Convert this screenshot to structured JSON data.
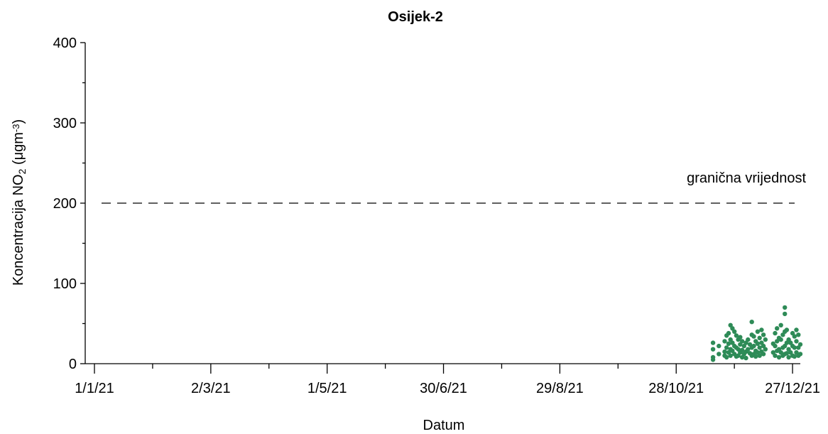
{
  "chart_data": {
    "type": "scatter",
    "title": "Osijek-2",
    "xlabel": "Datum",
    "ylabel": "Koncentracija NO₂ (μgm⁻³)",
    "ylim": [
      0,
      400
    ],
    "yticks": [
      0,
      100,
      200,
      300,
      400
    ],
    "xlim": [
      "2021-01-01",
      "2021-12-31"
    ],
    "xticks": [
      {
        "date": "2021-01-01",
        "label": "1/1/21"
      },
      {
        "date": "2021-03-02",
        "label": "2/3/21"
      },
      {
        "date": "2021-05-01",
        "label": "1/5/21"
      },
      {
        "date": "2021-06-30",
        "label": "30/6/21"
      },
      {
        "date": "2021-08-29",
        "label": "29/8/21"
      },
      {
        "date": "2021-10-28",
        "label": "28/10/21"
      },
      {
        "date": "2021-12-27",
        "label": "27/12/21"
      }
    ],
    "threshold": {
      "value": 200,
      "label": "granična vrijednost"
    },
    "series": [
      {
        "color": "#2e8b57",
        "points": [
          [
            "2021-11-16",
            8
          ],
          [
            "2021-11-16",
            18
          ],
          [
            "2021-11-16",
            26
          ],
          [
            "2021-11-16",
            5
          ],
          [
            "2021-11-19",
            12
          ],
          [
            "2021-11-19",
            22
          ],
          [
            "2021-11-22",
            15
          ],
          [
            "2021-11-22",
            28
          ],
          [
            "2021-11-22",
            10
          ],
          [
            "2021-11-23",
            20
          ],
          [
            "2021-11-23",
            35
          ],
          [
            "2021-11-23",
            8
          ],
          [
            "2021-11-24",
            25
          ],
          [
            "2021-11-24",
            38
          ],
          [
            "2021-11-24",
            14
          ],
          [
            "2021-11-25",
            48
          ],
          [
            "2021-11-25",
            30
          ],
          [
            "2021-11-25",
            18
          ],
          [
            "2021-11-25",
            10
          ],
          [
            "2021-11-26",
            44
          ],
          [
            "2021-11-26",
            26
          ],
          [
            "2021-11-26",
            16
          ],
          [
            "2021-11-27",
            40
          ],
          [
            "2021-11-27",
            22
          ],
          [
            "2021-11-27",
            12
          ],
          [
            "2021-11-28",
            35
          ],
          [
            "2021-11-28",
            20
          ],
          [
            "2021-11-28",
            9
          ],
          [
            "2021-11-29",
            30
          ],
          [
            "2021-11-29",
            18
          ],
          [
            "2021-11-29",
            10
          ],
          [
            "2021-11-30",
            33
          ],
          [
            "2021-11-30",
            24
          ],
          [
            "2021-11-30",
            14
          ],
          [
            "2021-12-01",
            28
          ],
          [
            "2021-12-01",
            17
          ],
          [
            "2021-12-01",
            8
          ],
          [
            "2021-12-02",
            22
          ],
          [
            "2021-12-02",
            12
          ],
          [
            "2021-12-03",
            26
          ],
          [
            "2021-12-03",
            15
          ],
          [
            "2021-12-03",
            7
          ],
          [
            "2021-12-04",
            30
          ],
          [
            "2021-12-04",
            18
          ],
          [
            "2021-12-05",
            24
          ],
          [
            "2021-12-05",
            13
          ],
          [
            "2021-12-06",
            52
          ],
          [
            "2021-12-06",
            36
          ],
          [
            "2021-12-06",
            20
          ],
          [
            "2021-12-06",
            10
          ],
          [
            "2021-12-07",
            34
          ],
          [
            "2021-12-07",
            22
          ],
          [
            "2021-12-07",
            12
          ],
          [
            "2021-12-08",
            28
          ],
          [
            "2021-12-08",
            16
          ],
          [
            "2021-12-08",
            9
          ],
          [
            "2021-12-09",
            40
          ],
          [
            "2021-12-09",
            25
          ],
          [
            "2021-12-09",
            14
          ],
          [
            "2021-12-10",
            32
          ],
          [
            "2021-12-10",
            20
          ],
          [
            "2021-12-10",
            10
          ],
          [
            "2021-12-11",
            42
          ],
          [
            "2021-12-11",
            26
          ],
          [
            "2021-12-11",
            15
          ],
          [
            "2021-12-12",
            36
          ],
          [
            "2021-12-12",
            22
          ],
          [
            "2021-12-12",
            12
          ],
          [
            "2021-12-13",
            30
          ],
          [
            "2021-12-13",
            18
          ],
          [
            "2021-12-17",
            25
          ],
          [
            "2021-12-17",
            14
          ],
          [
            "2021-12-18",
            38
          ],
          [
            "2021-12-18",
            22
          ],
          [
            "2021-12-18",
            10
          ],
          [
            "2021-12-19",
            44
          ],
          [
            "2021-12-19",
            28
          ],
          [
            "2021-12-19",
            16
          ],
          [
            "2021-12-20",
            32
          ],
          [
            "2021-12-20",
            18
          ],
          [
            "2021-12-20",
            8
          ],
          [
            "2021-12-21",
            48
          ],
          [
            "2021-12-21",
            30
          ],
          [
            "2021-12-21",
            14
          ],
          [
            "2021-12-22",
            36
          ],
          [
            "2021-12-22",
            20
          ],
          [
            "2021-12-22",
            10
          ],
          [
            "2021-12-23",
            70
          ],
          [
            "2021-12-23",
            62
          ],
          [
            "2021-12-23",
            40
          ],
          [
            "2021-12-23",
            22
          ],
          [
            "2021-12-23",
            12
          ],
          [
            "2021-12-24",
            42
          ],
          [
            "2021-12-24",
            26
          ],
          [
            "2021-12-24",
            13
          ],
          [
            "2021-12-25",
            30
          ],
          [
            "2021-12-25",
            18
          ],
          [
            "2021-12-25",
            8
          ],
          [
            "2021-12-26",
            26
          ],
          [
            "2021-12-26",
            14
          ],
          [
            "2021-12-27",
            38
          ],
          [
            "2021-12-27",
            22
          ],
          [
            "2021-12-27",
            10
          ],
          [
            "2021-12-28",
            34
          ],
          [
            "2021-12-28",
            20
          ],
          [
            "2021-12-28",
            9
          ],
          [
            "2021-12-29",
            42
          ],
          [
            "2021-12-29",
            28
          ],
          [
            "2021-12-29",
            14
          ],
          [
            "2021-12-30",
            36
          ],
          [
            "2021-12-30",
            20
          ],
          [
            "2021-12-30",
            10
          ],
          [
            "2021-12-31",
            24
          ],
          [
            "2021-12-31",
            12
          ]
        ]
      }
    ],
    "grid": false
  }
}
